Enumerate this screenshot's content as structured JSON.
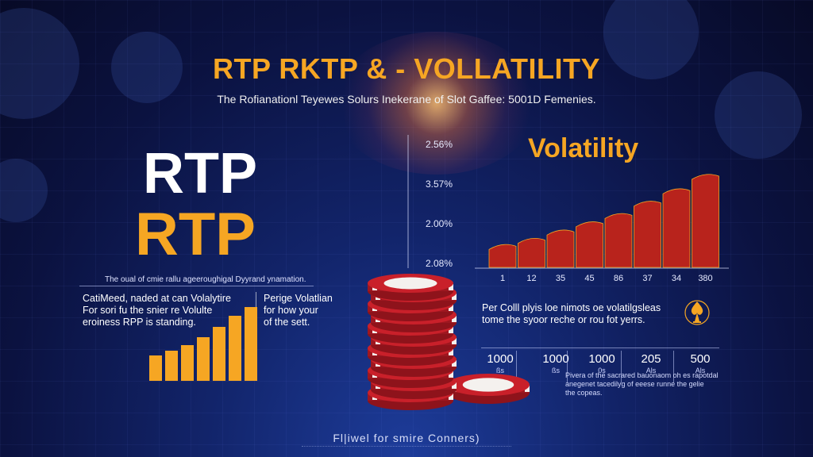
{
  "header": {
    "title": "RTP RKTP  & - VOLLATILITY",
    "subtitle": "The Rofianationl Teyewes Solurs Inekerane of Slot Gaffee: 5001D Femenies."
  },
  "left_panel": {
    "rtp_white": "RTP",
    "rtp_orange": "RTP",
    "caption": "The oual of cmie rallu ageeroughigal Dyyrand ynamation.",
    "desc_lines": [
      "CatiMeed, naded at can Volalytire",
      "For sori fu the snier re Volulte",
      "eroiness RPP is standing."
    ],
    "mid_lines": [
      "Perige Volatlian",
      "for how your",
      "of the sett."
    ],
    "bar_levels": [
      0.32,
      0.38,
      0.45,
      0.55,
      0.68,
      0.82,
      0.93
    ],
    "bar_color": "#f6a623"
  },
  "volatility_chart": {
    "title": "Volatility",
    "y_ticks": [
      "2.56%",
      "3.57%",
      "2.00%",
      "2.08%"
    ],
    "x_ticks": [
      "1",
      "12",
      "35",
      "45",
      "86",
      "37",
      "34",
      "380"
    ],
    "bar_levels": [
      0.22,
      0.28,
      0.36,
      0.44,
      0.52,
      0.64,
      0.76,
      0.9
    ],
    "bar_color": "#b8231c"
  },
  "right_panel": {
    "desc_lines": [
      "Per Colll plyis loe nimots oe volatilgsleas",
      "tome the syoor reche or rou fot yerrs."
    ],
    "spade_icon": "spade-trophy-icon"
  },
  "stats": {
    "items": [
      {
        "value": "1000",
        "unit": "ßs"
      },
      {
        "value": "1000",
        "unit": "ßs"
      },
      {
        "value": "1000",
        "unit": "0s"
      },
      {
        "value": "205",
        "unit": "Als"
      },
      {
        "value": "500",
        "unit": "Als"
      }
    ],
    "note_lines": [
      "Pivera of the sacrared bauonaom oh es rapotdal",
      "anegenet tacedilyg of eeese runne the gelie",
      "the copeas."
    ]
  },
  "footer": {
    "text": "Fl|iwel for smire Conners)"
  },
  "chips": {
    "chip_red": "#c9202a",
    "chip_white": "#f4f1ee"
  }
}
